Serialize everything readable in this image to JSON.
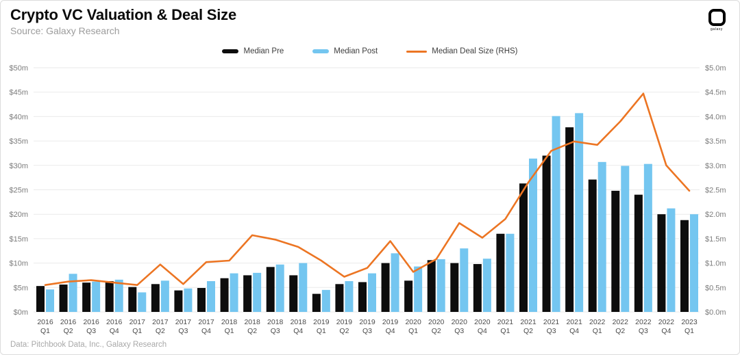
{
  "header": {
    "title": "Crypto VC Valuation & Deal Size",
    "source": "Source: Galaxy Research",
    "logo_text": "galaxy"
  },
  "footer": {
    "credit": "Data: Pitchbook Data, Inc., Galaxy Research"
  },
  "colors": {
    "median_pre": "#0d0d0d",
    "median_post": "#74c6f0",
    "deal_size_line": "#ec7523",
    "gridline": "#eaeaea",
    "axis_label": "#7c7c7c",
    "x_label": "#4a4a4a"
  },
  "chart_data": {
    "type": "bar",
    "title": "Crypto VC Valuation & Deal Size",
    "subtitle": "Source: Galaxy Research",
    "legend_position": "top-center",
    "grid": "horizontal",
    "categories": [
      "2016 Q1",
      "2016 Q2",
      "2016 Q3",
      "2016 Q4",
      "2017 Q1",
      "2017 Q2",
      "2017 Q3",
      "2017 Q4",
      "2018 Q1",
      "2018 Q2",
      "2018 Q3",
      "2018 Q4",
      "2019 Q1",
      "2019 Q2",
      "2019 Q3",
      "2019 Q4",
      "2020 Q1",
      "2020 Q2",
      "2020 Q3",
      "2020 Q4",
      "2021 Q1",
      "2021 Q2",
      "2021 Q3",
      "2021 Q4",
      "2022 Q1",
      "2022 Q2",
      "2022 Q3",
      "2022 Q4",
      "2023 Q1"
    ],
    "series": [
      {
        "name": "Median Pre",
        "type": "bar",
        "axis": "left",
        "color": "#0d0d0d",
        "values": [
          5.3,
          5.6,
          6.0,
          6.3,
          5.1,
          5.7,
          4.4,
          4.9,
          6.9,
          7.5,
          9.2,
          7.5,
          3.7,
          5.7,
          6.1,
          10.0,
          6.4,
          10.6,
          10.0,
          9.8,
          16.0,
          26.3,
          32.0,
          37.8,
          27.1,
          24.8,
          24.0,
          20.0,
          18.8
        ]
      },
      {
        "name": "Median Post",
        "type": "bar",
        "axis": "left",
        "color": "#74c6f0",
        "values": [
          4.6,
          7.8,
          6.2,
          6.6,
          4.0,
          6.4,
          4.8,
          6.3,
          7.9,
          8.0,
          9.7,
          10.0,
          4.5,
          6.3,
          7.9,
          12.0,
          9.3,
          10.8,
          13.0,
          10.9,
          16.0,
          31.4,
          40.1,
          40.7,
          30.7,
          29.9,
          30.3,
          21.2,
          20.0
        ]
      },
      {
        "name": "Median Deal Size (RHS)",
        "type": "line",
        "axis": "right",
        "color": "#ec7523",
        "values": [
          0.55,
          0.62,
          0.65,
          0.6,
          0.55,
          0.97,
          0.57,
          1.02,
          1.05,
          1.57,
          1.48,
          1.33,
          1.05,
          0.72,
          0.9,
          1.45,
          0.82,
          1.08,
          1.82,
          1.52,
          1.9,
          2.65,
          3.3,
          3.49,
          3.42,
          3.9,
          4.47,
          3.0,
          2.48
        ]
      }
    ],
    "left_axis": {
      "min": 0,
      "max": 50,
      "ticks": [
        "$50m",
        "$45m",
        "$40m",
        "$35m",
        "$30m",
        "$25m",
        "$20m",
        "$15m",
        "$10m",
        "$5m",
        "$0m"
      ]
    },
    "right_axis": {
      "min": 0,
      "max": 5,
      "ticks": [
        "$5.0m",
        "$4.5m",
        "$4.0m",
        "$3.5m",
        "$3.0m",
        "$2.5m",
        "$2.0m",
        "$1.5m",
        "$1.0m",
        "$0.5m",
        "$0.0m"
      ]
    }
  }
}
